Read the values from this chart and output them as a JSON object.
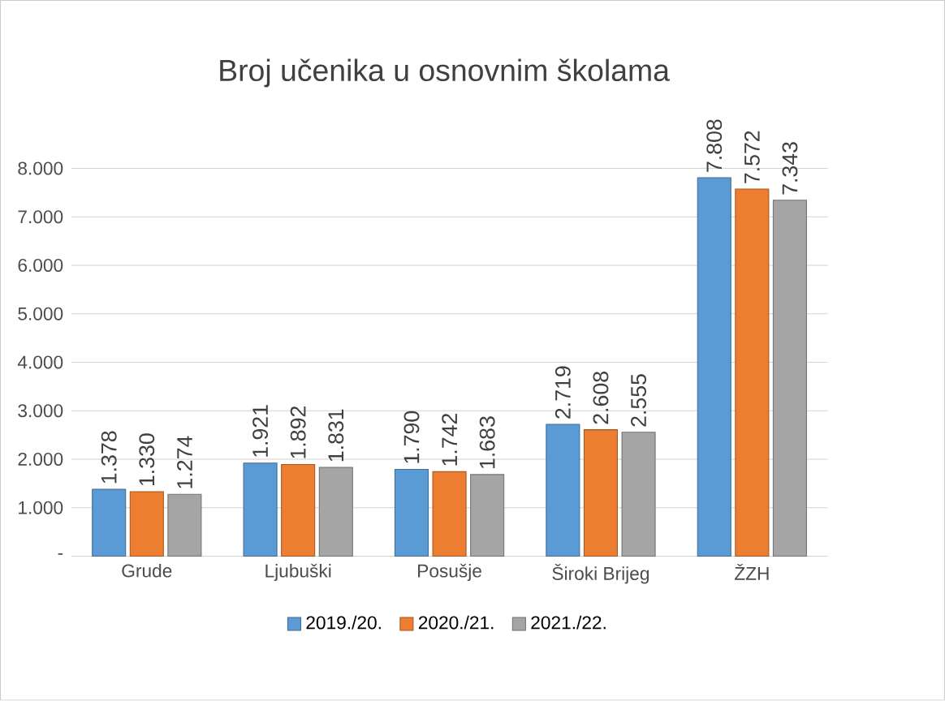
{
  "chart_data": {
    "type": "bar",
    "title": "Broj učenika u osnovnim školama",
    "categories": [
      "Grude",
      "Ljubuški",
      "Posušje",
      "Široki Brijeg",
      "ŽZH"
    ],
    "series": [
      {
        "name": "2019./20.",
        "color": "#5b9bd5",
        "values": [
          1378,
          1921,
          1790,
          2719,
          7808
        ],
        "value_labels": [
          "1.378",
          "1.921",
          "1.790",
          "2.719",
          "7.808"
        ]
      },
      {
        "name": "2020./21.",
        "color": "#ed7d31",
        "values": [
          1330,
          1892,
          1742,
          2608,
          7572
        ],
        "value_labels": [
          "1.330",
          "1.892",
          "1.742",
          "2.608",
          "7.572"
        ]
      },
      {
        "name": "2021./22.",
        "color": "#a5a5a5",
        "values": [
          1274,
          1831,
          1683,
          2555,
          7343
        ],
        "value_labels": [
          "1.274",
          "1.831",
          "1.683",
          "2.555",
          "7.343"
        ]
      }
    ],
    "ylim": [
      0,
      8000
    ],
    "yticks": [
      {
        "value": 0,
        "label": "-"
      },
      {
        "value": 1000,
        "label": "1.000"
      },
      {
        "value": 2000,
        "label": "2.000"
      },
      {
        "value": 3000,
        "label": "3.000"
      },
      {
        "value": 4000,
        "label": "4.000"
      },
      {
        "value": 5000,
        "label": "5.000"
      },
      {
        "value": 6000,
        "label": "6.000"
      },
      {
        "value": 7000,
        "label": "7.000"
      },
      {
        "value": 8000,
        "label": "8.000"
      }
    ],
    "grid": "y",
    "legend": "bottom"
  }
}
